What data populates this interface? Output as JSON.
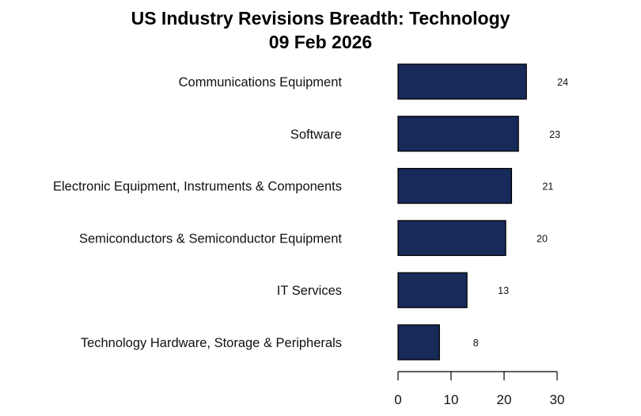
{
  "chart_data": {
    "type": "bar",
    "orientation": "horizontal",
    "title": "US Industry Revisions Breadth: Technology",
    "subtitle": "09 Feb 2026",
    "xlabel": "",
    "ylabel": "",
    "categories": [
      "Communications Equipment",
      "Software",
      "Electronic Equipment, Instruments & Components",
      "Semiconductors & Semiconductor Equipment",
      "IT Services",
      "Technology Hardware, Storage & Peripherals"
    ],
    "values": [
      24.2,
      22.7,
      21.4,
      20.3,
      13.0,
      7.8
    ],
    "value_labels": [
      "24",
      "23",
      "21",
      "20",
      "13",
      "8"
    ],
    "xlim": [
      0,
      30
    ],
    "xticks": [
      0,
      10,
      20,
      30
    ],
    "xtick_labels": [
      "0",
      "10",
      "20",
      "30"
    ],
    "grid": false,
    "legend": "none",
    "bar_color": "#172a5a",
    "bar_edge_color": "#000000"
  }
}
